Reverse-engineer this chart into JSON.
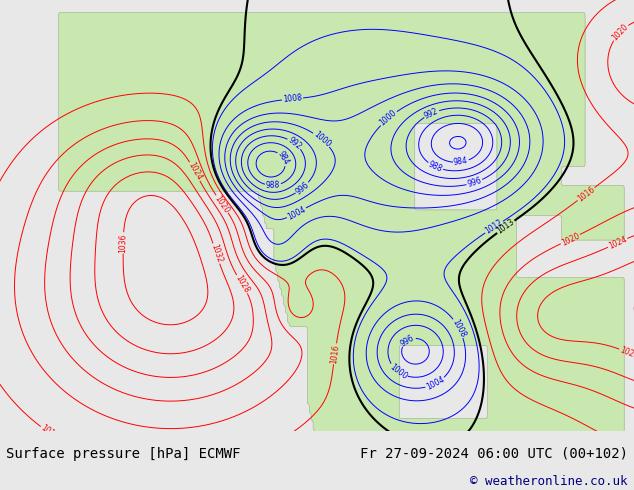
{
  "title_left": "Surface pressure [hPa] ECMWF",
  "title_right": "Fr 27-09-2024 06:00 UTC (00+102)",
  "copyright": "© weatheronline.co.uk",
  "ocean_color": "#d8d8d8",
  "land_color": "#c8e8b0",
  "land_edge_color": "#999999",
  "bottom_bar_color": "#e8e8e8",
  "font_family": "monospace",
  "title_fontsize": 10,
  "copyright_fontsize": 9,
  "figsize": [
    6.34,
    4.9
  ],
  "dpi": 100,
  "xlim": [
    -180,
    -50
  ],
  "ylim": [
    15,
    85
  ]
}
